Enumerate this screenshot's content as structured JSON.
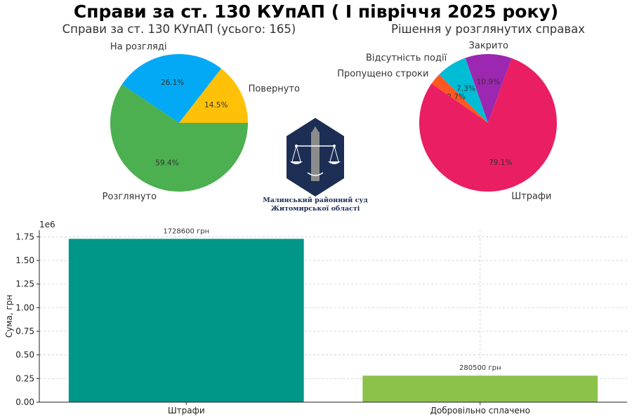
{
  "title": "Справи за ст. 130 КУпАП ( І півріччя 2025 року)",
  "logo": {
    "line1": "Малинський районний суд",
    "line2": "Житомирської області",
    "navy": "#1c2e54",
    "grey": "#8c8c8c"
  },
  "chart_data": [
    {
      "type": "pie",
      "title": "Справи за ст. 130 КУпАП (усього: 165)",
      "slices": [
        {
          "label": "Повернуто",
          "percent": 14.5,
          "pct_text": "14.5%",
          "color": "#ffc107"
        },
        {
          "label": "На розгляді",
          "percent": 26.1,
          "pct_text": "26.1%",
          "color": "#03a9f4"
        },
        {
          "label": "Розглянуто",
          "percent": 59.4,
          "pct_text": "59.4%",
          "color": "#4caf50"
        }
      ]
    },
    {
      "type": "pie",
      "title": "Рішення у розглянутих справах",
      "slices": [
        {
          "label": "Закрито",
          "percent": 10.9,
          "pct_text": "10.9%",
          "color": "#9c27b0"
        },
        {
          "label": "Відсутність події",
          "percent": 7.3,
          "pct_text": "7.3%",
          "color": "#00bcd4"
        },
        {
          "label": "Пропущено строки",
          "percent": 2.7,
          "pct_text": "2.7%",
          "color": "#ff5722"
        },
        {
          "label": "Штрафи",
          "percent": 79.1,
          "pct_text": "79.1%",
          "color": "#e91e63"
        }
      ]
    },
    {
      "type": "bar",
      "categories": [
        "Штрафи",
        "Добровільно сплачено"
      ],
      "values": [
        1728600,
        280500
      ],
      "value_labels": [
        "1728600 грн",
        "280500 грн"
      ],
      "colors": [
        "#009688",
        "#8bc34a"
      ],
      "ylabel": "Сума, грн",
      "ylim": [
        0,
        1820000
      ],
      "yticks": [
        0,
        250000,
        500000,
        750000,
        1000000,
        1250000,
        1500000,
        1750000
      ],
      "ytick_labels": [
        "0.00",
        "0.25",
        "0.50",
        "0.75",
        "1.00",
        "1.25",
        "1.50",
        "1.75"
      ],
      "offset_text": "1e6",
      "grid": true
    }
  ]
}
